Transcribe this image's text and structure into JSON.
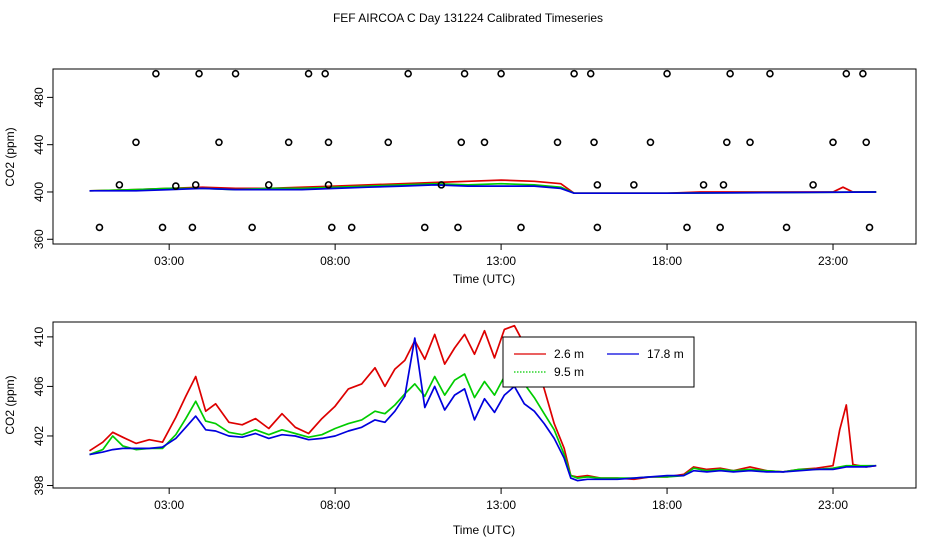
{
  "page_title": "FEF AIRCOA C  Day 131224  Calibrated Timeseries",
  "colors": {
    "h2_6": "#dd0000",
    "h9_5": "#00cc00",
    "h17_8": "#0000dd",
    "axis": "#000000"
  },
  "chart_data": [
    {
      "type": "scatter+line",
      "title": "",
      "xlabel": "Time (UTC)",
      "ylabel": "CO2 (ppm)",
      "xlim": [
        -0.5,
        25.5
      ],
      "ylim": [
        356,
        504
      ],
      "x_ticks": [
        3,
        8,
        13,
        18,
        23
      ],
      "x_tick_labels": [
        "03:00",
        "08:00",
        "13:00",
        "18:00",
        "23:00"
      ],
      "y_ticks": [
        360,
        400,
        440,
        480
      ],
      "y_tick_labels": [
        "360",
        "400",
        "440",
        "480"
      ],
      "circles": [
        [
          0.9,
          370
        ],
        [
          1.5,
          406
        ],
        [
          2.0,
          442
        ],
        [
          2.6,
          500
        ],
        [
          2.8,
          370
        ],
        [
          3.2,
          405
        ],
        [
          3.7,
          370
        ],
        [
          3.8,
          406
        ],
        [
          3.9,
          500
        ],
        [
          4.5,
          442
        ],
        [
          5.0,
          500
        ],
        [
          5.5,
          370
        ],
        [
          6.0,
          406
        ],
        [
          6.6,
          442
        ],
        [
          7.2,
          500
        ],
        [
          7.7,
          500
        ],
        [
          7.8,
          442
        ],
        [
          7.8,
          406
        ],
        [
          7.9,
          370
        ],
        [
          8.5,
          370
        ],
        [
          9.6,
          442
        ],
        [
          10.2,
          500
        ],
        [
          10.7,
          370
        ],
        [
          11.2,
          406
        ],
        [
          11.7,
          370
        ],
        [
          11.8,
          442
        ],
        [
          11.9,
          500
        ],
        [
          12.5,
          442
        ],
        [
          13.0,
          500
        ],
        [
          13.6,
          370
        ],
        [
          14.7,
          442
        ],
        [
          15.2,
          500
        ],
        [
          15.7,
          500
        ],
        [
          15.8,
          442
        ],
        [
          15.9,
          406
        ],
        [
          15.9,
          370
        ],
        [
          17.0,
          406
        ],
        [
          17.5,
          442
        ],
        [
          18.0,
          500
        ],
        [
          18.6,
          370
        ],
        [
          19.1,
          406
        ],
        [
          19.6,
          370
        ],
        [
          19.7,
          406
        ],
        [
          19.8,
          442
        ],
        [
          19.9,
          500
        ],
        [
          20.5,
          442
        ],
        [
          21.1,
          500
        ],
        [
          21.6,
          370
        ],
        [
          22.4,
          406
        ],
        [
          23.0,
          442
        ],
        [
          23.4,
          500
        ],
        [
          23.9,
          500
        ],
        [
          24.0,
          442
        ],
        [
          24.1,
          370
        ]
      ],
      "series": [
        {
          "name": "2.6 m",
          "color": "#dd0000",
          "x": [
            0.6,
            2,
            3,
            4,
            5,
            6,
            7,
            8,
            9,
            10,
            11,
            12,
            13,
            14,
            14.8,
            15.2,
            16,
            18,
            19,
            22,
            23,
            23.3,
            23.6,
            24.3
          ],
          "y": [
            401,
            402,
            403,
            404,
            403,
            403,
            404,
            405,
            406,
            407,
            408,
            409,
            410,
            409,
            407,
            399,
            399,
            399,
            400,
            400,
            400,
            404,
            400,
            400
          ]
        },
        {
          "name": "9.5 m",
          "color": "#00cc00",
          "x": [
            0.6,
            2,
            3,
            4,
            5,
            6,
            7,
            8,
            9,
            10,
            11,
            12,
            13,
            14,
            14.8,
            15.2,
            16,
            18,
            24.3
          ],
          "y": [
            401,
            402,
            403,
            403,
            402,
            403,
            403,
            404,
            405,
            406,
            407,
            406,
            407,
            406,
            404,
            399,
            399,
            399,
            400
          ]
        },
        {
          "name": "17.8 m",
          "color": "#0000dd",
          "x": [
            0.6,
            2,
            3,
            4,
            5,
            6,
            7,
            8,
            9,
            10,
            11,
            12,
            13,
            14,
            14.8,
            15.2,
            16,
            18,
            24.3
          ],
          "y": [
            401,
            401,
            402,
            403,
            402,
            402,
            402,
            403,
            404,
            405,
            406,
            405,
            405,
            405,
            403,
            399,
            399,
            399,
            400
          ]
        }
      ]
    },
    {
      "type": "line",
      "title": "",
      "xlabel": "Time (UTC)",
      "ylabel": "CO2 (ppm)",
      "xlim": [
        -0.5,
        25.5
      ],
      "ylim": [
        397.8,
        411.2
      ],
      "x_ticks": [
        3,
        8,
        13,
        18,
        23
      ],
      "x_tick_labels": [
        "03:00",
        "08:00",
        "13:00",
        "18:00",
        "23:00"
      ],
      "y_ticks": [
        398,
        402,
        406,
        410
      ],
      "y_tick_labels": [
        "398",
        "402",
        "406",
        "410"
      ],
      "legend": {
        "position": "top-center",
        "entries": [
          "2.6 m",
          "9.5 m",
          "17.8 m"
        ]
      },
      "series": [
        {
          "name": "2.6 m",
          "color": "#dd0000",
          "x": [
            0.6,
            1,
            1.3,
            1.6,
            2,
            2.4,
            2.8,
            3.2,
            3.5,
            3.8,
            4.1,
            4.4,
            4.8,
            5.2,
            5.6,
            6,
            6.4,
            6.8,
            7.2,
            7.6,
            8,
            8.4,
            8.8,
            9.2,
            9.5,
            9.8,
            10.1,
            10.4,
            10.7,
            11,
            11.3,
            11.6,
            11.9,
            12.2,
            12.5,
            12.8,
            13.1,
            13.4,
            13.7,
            14,
            14.3,
            14.6,
            14.9,
            15.1,
            15.3,
            15.6,
            16,
            16.5,
            17,
            17.5,
            18,
            18.5,
            18.8,
            19.2,
            19.6,
            20,
            20.5,
            21,
            21.5,
            22,
            22.5,
            23,
            23.2,
            23.4,
            23.6,
            24,
            24.3
          ],
          "y": [
            400.8,
            401.5,
            402.3,
            401.9,
            401.4,
            401.7,
            401.5,
            403.5,
            405.2,
            406.8,
            404.0,
            404.6,
            403.1,
            402.9,
            403.4,
            402.6,
            403.8,
            402.7,
            402.2,
            403.4,
            404.4,
            405.8,
            406.2,
            407.5,
            406.0,
            407.4,
            408.1,
            409.7,
            408.2,
            410.2,
            407.8,
            409.1,
            410.2,
            408.6,
            410.5,
            408.3,
            410.6,
            410.9,
            409.4,
            408.2,
            405.8,
            403.0,
            401.0,
            398.8,
            398.7,
            398.8,
            398.6,
            398.6,
            398.5,
            398.7,
            398.7,
            398.9,
            399.5,
            399.3,
            399.4,
            399.2,
            399.5,
            399.2,
            399.1,
            399.3,
            399.4,
            399.6,
            402.5,
            404.5,
            399.7,
            399.5,
            399.6
          ]
        },
        {
          "name": "9.5 m",
          "color": "#00cc00",
          "x": [
            0.6,
            1,
            1.3,
            1.6,
            2,
            2.4,
            2.8,
            3.2,
            3.5,
            3.8,
            4.1,
            4.4,
            4.8,
            5.2,
            5.6,
            6,
            6.4,
            6.8,
            7.2,
            7.6,
            8,
            8.4,
            8.8,
            9.2,
            9.5,
            9.8,
            10.1,
            10.4,
            10.7,
            11,
            11.3,
            11.6,
            11.9,
            12.2,
            12.5,
            12.8,
            13.1,
            13.4,
            13.7,
            14,
            14.3,
            14.6,
            14.9,
            15.1,
            15.3,
            15.6,
            16,
            16.5,
            17,
            17.5,
            18,
            18.5,
            18.8,
            19.2,
            19.6,
            20,
            20.5,
            21,
            21.5,
            22,
            22.5,
            23,
            23.2,
            23.4,
            23.6,
            24,
            24.3
          ],
          "y": [
            400.5,
            400.9,
            402.0,
            401.2,
            400.9,
            401.0,
            401.0,
            402.1,
            403.4,
            404.8,
            403.2,
            403.0,
            402.3,
            402.1,
            402.5,
            402.1,
            402.5,
            402.2,
            401.9,
            402.1,
            402.6,
            403.0,
            403.3,
            404.0,
            403.8,
            404.5,
            405.4,
            406.2,
            405.2,
            406.8,
            405.3,
            406.5,
            407.0,
            405.1,
            406.4,
            405.3,
            406.8,
            407.4,
            406.2,
            405.1,
            403.8,
            402.5,
            400.5,
            398.8,
            398.6,
            398.7,
            398.6,
            398.6,
            398.6,
            398.7,
            398.7,
            398.8,
            399.4,
            399.2,
            399.3,
            399.2,
            399.3,
            399.2,
            399.1,
            399.3,
            399.3,
            399.4,
            399.5,
            399.6,
            399.6,
            399.6,
            399.6
          ]
        },
        {
          "name": "17.8 m",
          "color": "#0000dd",
          "x": [
            0.6,
            1,
            1.3,
            1.6,
            2,
            2.4,
            2.8,
            3.2,
            3.5,
            3.8,
            4.1,
            4.4,
            4.8,
            5.2,
            5.6,
            6,
            6.4,
            6.8,
            7.2,
            7.6,
            8,
            8.4,
            8.8,
            9.2,
            9.5,
            9.8,
            10.1,
            10.4,
            10.7,
            11,
            11.3,
            11.6,
            11.9,
            12.2,
            12.5,
            12.8,
            13.1,
            13.4,
            13.7,
            14,
            14.3,
            14.6,
            14.9,
            15.1,
            15.3,
            15.6,
            16,
            16.5,
            17,
            17.5,
            18,
            18.5,
            18.8,
            19.2,
            19.6,
            20,
            20.5,
            21,
            21.5,
            22,
            22.5,
            23,
            23.2,
            23.4,
            23.6,
            24,
            24.3
          ],
          "y": [
            400.5,
            400.7,
            400.9,
            401.0,
            401.0,
            401.0,
            401.1,
            401.8,
            402.7,
            403.6,
            402.5,
            402.4,
            402.0,
            401.9,
            402.2,
            401.8,
            402.1,
            402.0,
            401.7,
            401.8,
            402.0,
            402.4,
            402.7,
            403.3,
            403.1,
            404.0,
            405.2,
            409.9,
            404.3,
            406.0,
            404.1,
            405.3,
            405.8,
            403.3,
            405.0,
            403.9,
            405.3,
            406.0,
            404.6,
            404.0,
            403.0,
            401.8,
            400.2,
            398.6,
            398.4,
            398.5,
            398.5,
            398.5,
            398.6,
            398.7,
            398.8,
            398.8,
            399.2,
            399.1,
            399.2,
            399.1,
            399.2,
            399.1,
            399.1,
            399.2,
            399.3,
            399.3,
            399.4,
            399.5,
            399.5,
            399.5,
            399.6
          ]
        }
      ]
    }
  ]
}
